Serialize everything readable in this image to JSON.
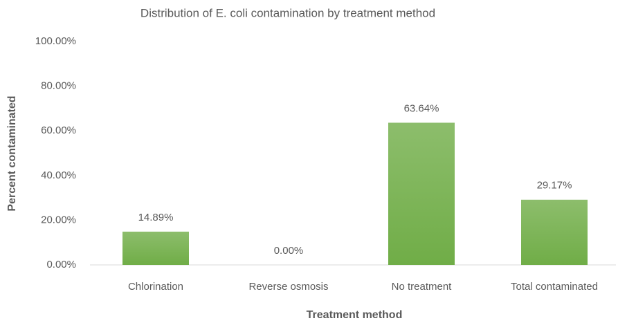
{
  "chart_data": {
    "type": "bar",
    "title": "Distribution of E. coli contamination by treatment method",
    "x_label": "Treatment method",
    "y_label": "Percent contaminated",
    "categories": [
      "Chlorination",
      "Reverse osmosis",
      "No treatment",
      "Total contaminated"
    ],
    "values": [
      14.89,
      0,
      63.64,
      29.17
    ],
    "value_labels": [
      "14.89%",
      "0.00%",
      "63.64%",
      "29.17%"
    ],
    "color": "#70ad47",
    "ylim": [
      0,
      100
    ],
    "yticks": [
      {
        "value": 0,
        "label": "0.00%"
      },
      {
        "value": 20,
        "label": "20.00%"
      },
      {
        "value": 40,
        "label": "40.00%"
      },
      {
        "value": 60,
        "label": "60.00%"
      },
      {
        "value": 80,
        "label": "80.00%"
      },
      {
        "value": 100,
        "label": "100.00%"
      }
    ],
    "grid": false
  }
}
